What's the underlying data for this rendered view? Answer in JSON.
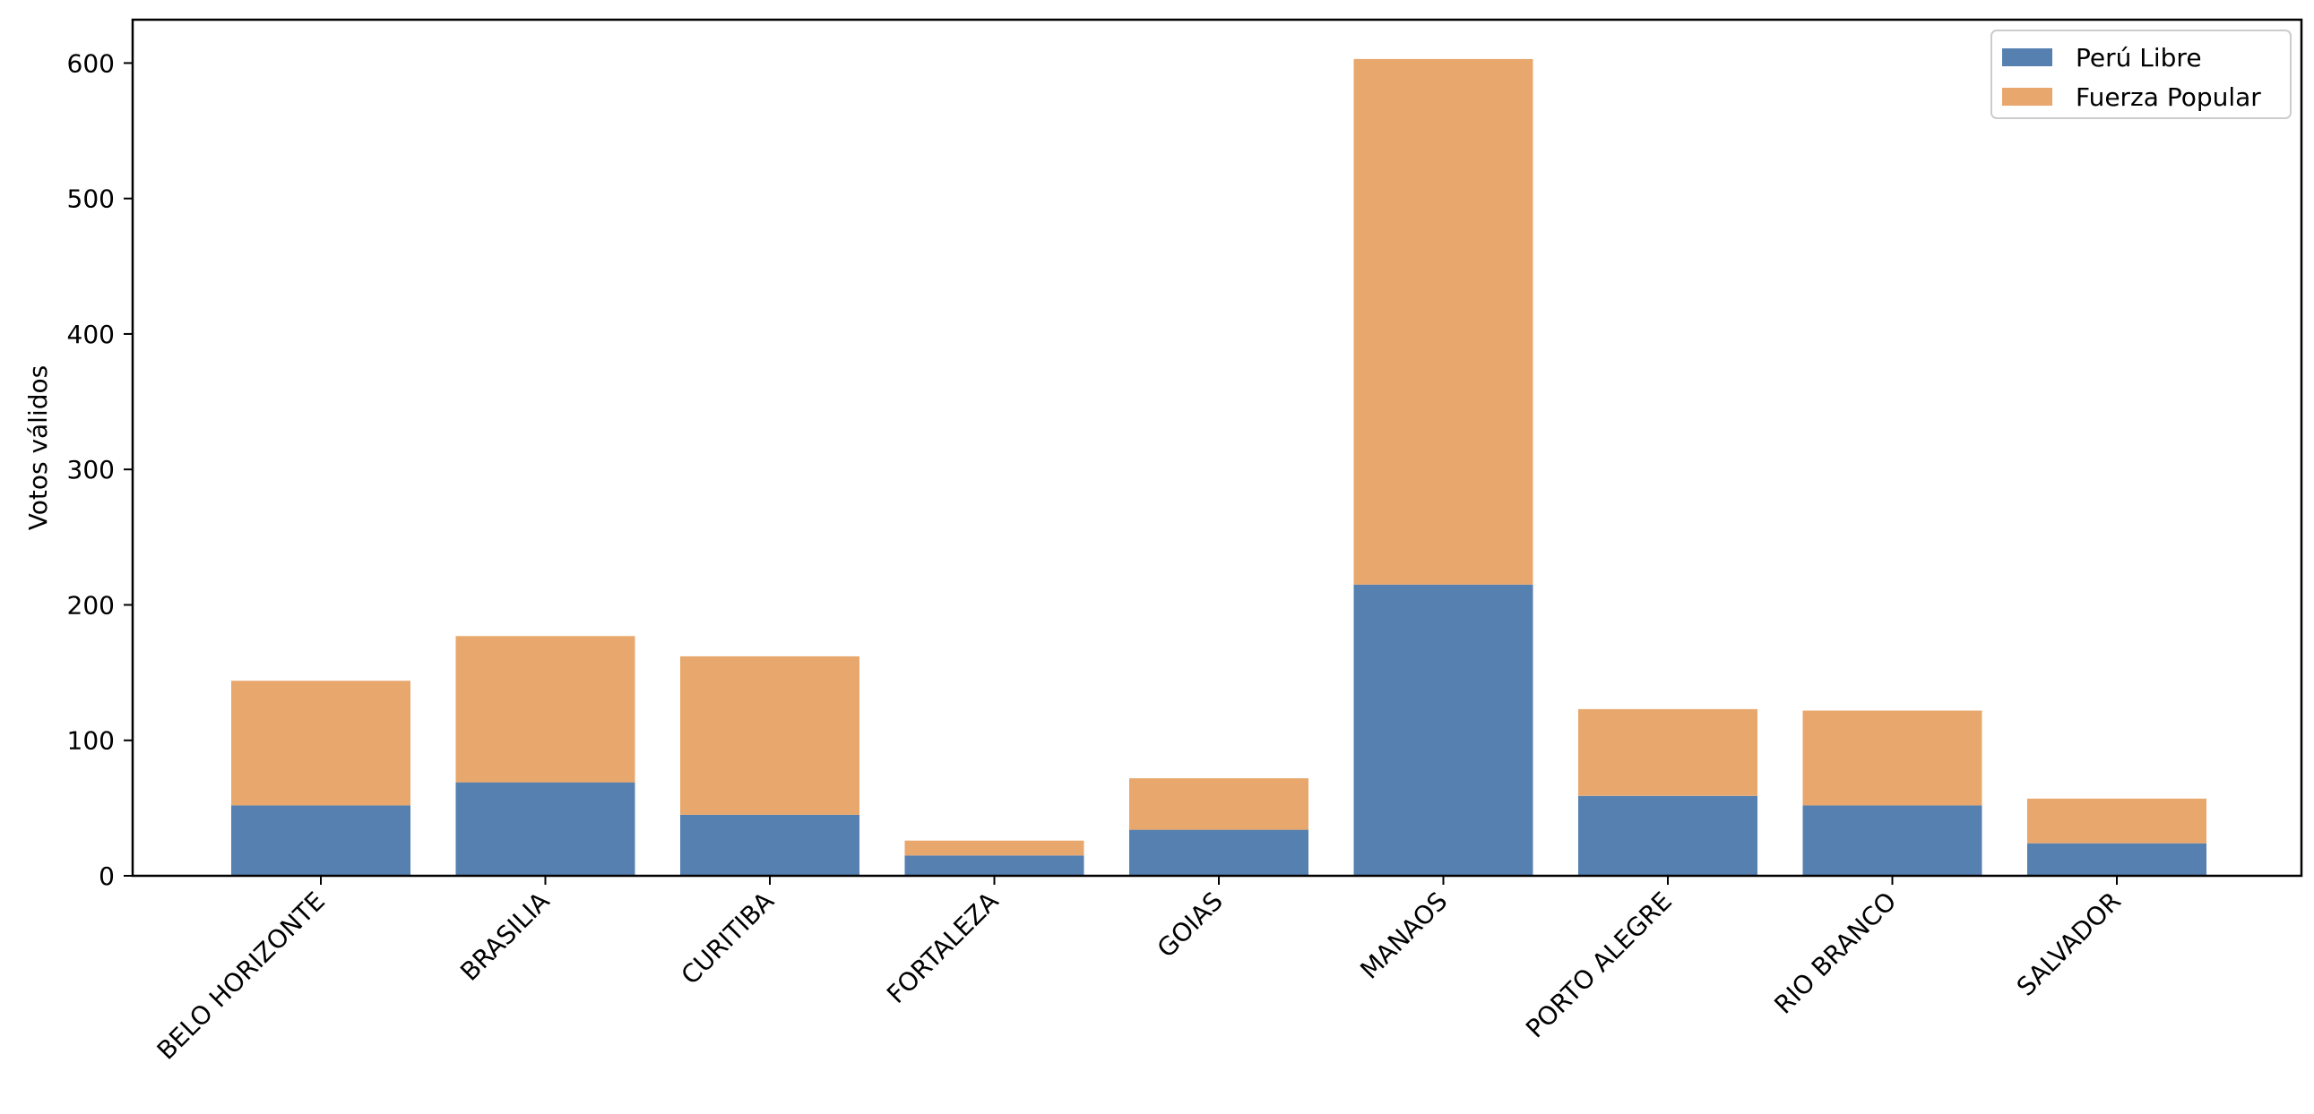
{
  "chart_data": {
    "type": "bar",
    "stacked": true,
    "title": "",
    "xlabel": "",
    "ylabel": "Votos válidos",
    "categories": [
      "BELO HORIZONTE",
      "BRASILIA",
      "CURITIBA",
      "FORTALEZA",
      "GOIAS",
      "MANAOS",
      "PORTO ALEGRE",
      "RIO BRANCO",
      "SALVADOR"
    ],
    "series": [
      {
        "name": "Perú Libre",
        "color": "#5580b0",
        "values": [
          52,
          69,
          45,
          15,
          34,
          215,
          59,
          52,
          24
        ]
      },
      {
        "name": "Fuerza Popular",
        "color": "#e8a76c",
        "values": [
          92,
          108,
          117,
          11,
          38,
          388,
          64,
          70,
          33
        ]
      }
    ],
    "ylim": [
      0,
      632
    ],
    "yticks": [
      0,
      100,
      200,
      300,
      400,
      500,
      600
    ],
    "grid": false,
    "legend_position": "top-right"
  }
}
